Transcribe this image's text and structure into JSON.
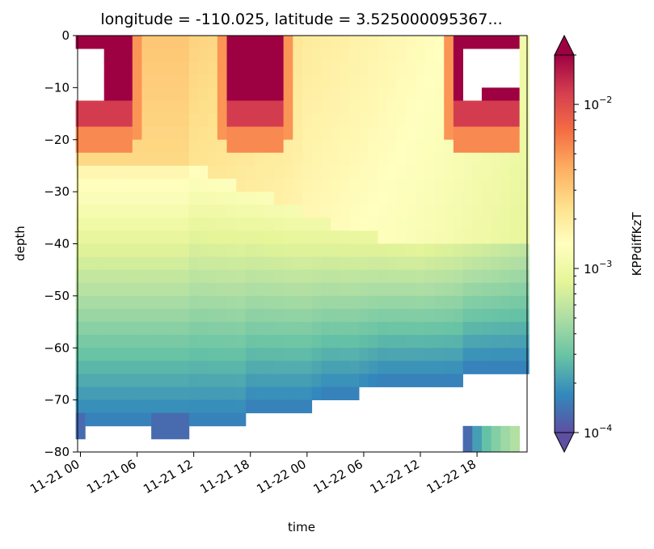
{
  "chart_data": {
    "type": "heatmap",
    "title": "longitude = -110.025, latitude = 3.525000095367...",
    "xlabel": "time",
    "ylabel": "depth",
    "x_ticks": [
      "11-21 00",
      "11-21 06",
      "11-21 12",
      "11-21 18",
      "11-22 00",
      "11-22 06",
      "11-22 12",
      "11-22 18"
    ],
    "y_ticks": [
      "0",
      "−10",
      "−20",
      "−30",
      "−40",
      "−50",
      "−60",
      "−70",
      "−80"
    ],
    "ylim": [
      -80,
      0
    ],
    "x_range_hours": [
      -0.3,
      47.3
    ],
    "n_time": 48,
    "depth_cells": [
      -2.5,
      -5,
      -7.5,
      -10,
      -12.5,
      -15,
      -17.5,
      -20,
      -22.5,
      -25,
      -27.5,
      -30,
      -32.5,
      -35,
      -37.5,
      -40,
      -42.5,
      -45,
      -47.5,
      -50,
      -52.5,
      -55,
      -57.5,
      -60,
      -62.5,
      -65,
      -67.5,
      -70,
      -72.5,
      -75,
      -77.5,
      -80
    ],
    "colorscale": "Spectral_r",
    "color_scale_type": "log",
    "clim": [
      0.0001,
      0.02
    ],
    "colorbar": {
      "label": "KPPdiffKzT",
      "ticks": [
        "10^-2",
        "10^-3",
        "10^-4"
      ],
      "tick_values": [
        0.01,
        0.001,
        0.0001
      ],
      "extend": "both"
    },
    "surface_blocks": {
      "mixed_hours": [
        [
          0,
          5.5
        ],
        [
          16,
          21.5
        ],
        [
          40,
          47
        ]
      ],
      "transition_hours": [
        [
          5.5,
          6.5
        ],
        [
          15,
          16
        ],
        [
          21.5,
          22.5
        ],
        [
          39,
          40
        ]
      ],
      "missing": [
        {
          "hours": [
            0,
            3
          ],
          "depth": [
            -5,
            -12.5
          ]
        },
        {
          "hours": [
            41,
            43
          ],
          "depth": [
            -5,
            -12.5
          ]
        },
        {
          "hours": [
            43,
            47
          ],
          "depth": [
            -5,
            -10
          ]
        }
      ]
    },
    "deep_boundary": {
      "hours": [
        0,
        4,
        8,
        12,
        17,
        18,
        24,
        26,
        29,
        32,
        36,
        40,
        41,
        47
      ],
      "depth": [
        -75,
        -75,
        -75,
        -75,
        -75,
        -72.5,
        -72.5,
        -70,
        -70,
        -67.5,
        -67.5,
        -67.5,
        -65,
        -65
      ]
    },
    "bottom_patches": [
      {
        "hours": [
          0,
          1
        ],
        "depth": [
          -75,
          -77.5
        ]
      },
      {
        "hours": [
          8,
          12
        ],
        "depth": [
          -75,
          -77.5
        ]
      },
      {
        "hours": [
          41,
          47
        ],
        "depth": [
          -77.5,
          -80
        ]
      }
    ]
  }
}
